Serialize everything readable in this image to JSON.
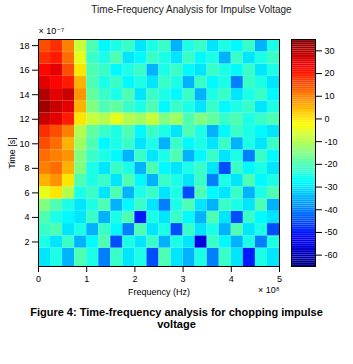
{
  "chart_data": {
    "type": "heatmap",
    "title": "Time-Frequency Analysis for Impulse Voltage",
    "x_label": "Frequency (Hz)",
    "y_label": "Time [s]",
    "x_exponent_label": "× 10⁸",
    "y_exponent_label": "× 10⁻⁷",
    "caption": "Figure 4: Time-frequency analysis for chopping impulse voltage",
    "xlim": [
      0,
      5
    ],
    "xticks": [
      0,
      1,
      2,
      3,
      4,
      5
    ],
    "ylim": [
      0,
      18.5
    ],
    "yticks": [
      2,
      4,
      6,
      8,
      10,
      12,
      14,
      16,
      18
    ],
    "color_range": [
      -65,
      35
    ],
    "color_ticks": [
      -60,
      -50,
      -40,
      -30,
      -20,
      -10,
      0,
      10,
      20,
      30
    ],
    "cells": {
      "x_edges": [
        0,
        0.25,
        0.5,
        0.75,
        1,
        1.25,
        1.5,
        1.75,
        2,
        2.25,
        2.5,
        2.75,
        3,
        3.25,
        3.5,
        3.75,
        4,
        4.25,
        4.5,
        4.75,
        5
      ],
      "y_edges": [
        0,
        1.5,
        2.5,
        3.5,
        4.5,
        5.5,
        6.5,
        7.5,
        8.5,
        9.5,
        10.5,
        11.5,
        12.5,
        13.5,
        14.5,
        15.5,
        16.5,
        17.5,
        18.5
      ],
      "values": [
        [
          -30,
          -25,
          -35,
          -20,
          -25,
          -40,
          -22,
          -30,
          -25,
          -45,
          -20,
          -30,
          -35,
          -25,
          -40,
          -22,
          -30,
          -50,
          -25,
          -30
        ],
        [
          -25,
          -30,
          -22,
          -35,
          -28,
          -20,
          -45,
          -25,
          -30,
          -22,
          -35,
          -25,
          -30,
          -55,
          -22,
          -28,
          -35,
          -25,
          -40,
          -25
        ],
        [
          -22,
          -20,
          -30,
          -25,
          -35,
          -22,
          -28,
          -40,
          -20,
          -30,
          -25,
          -45,
          -22,
          -30,
          -25,
          -35,
          -20,
          -30,
          -25,
          -45
        ],
        [
          -20,
          -25,
          -28,
          -30,
          -22,
          -35,
          -25,
          -20,
          -50,
          -25,
          -30,
          -22,
          -28,
          -35,
          -20,
          -30,
          -45,
          -22,
          -28,
          -30
        ],
        [
          -15,
          -20,
          -25,
          -30,
          -25,
          -20,
          -35,
          -28,
          -22,
          -30,
          -40,
          -25,
          -20,
          -30,
          -35,
          -22,
          -25,
          -30,
          -20,
          -35
        ],
        [
          -5,
          0,
          -10,
          -25,
          -22,
          -30,
          -20,
          -35,
          -25,
          -22,
          -30,
          -25,
          -45,
          -20,
          -28,
          -30,
          -22,
          -35,
          -25,
          -20
        ],
        [
          5,
          8,
          0,
          -20,
          -25,
          -22,
          -30,
          -20,
          -28,
          -35,
          -22,
          -25,
          -30,
          -22,
          -40,
          -25,
          -30,
          -20,
          -28,
          -25
        ],
        [
          10,
          12,
          5,
          -15,
          -25,
          -30,
          -22,
          -25,
          -35,
          -20,
          -28,
          -30,
          -25,
          -22,
          -30,
          -45,
          -22,
          -28,
          -25,
          -30
        ],
        [
          12,
          10,
          8,
          -15,
          -22,
          -25,
          -28,
          -35,
          -22,
          -30,
          -25,
          -20,
          -35,
          -28,
          -22,
          -30,
          -25,
          -40,
          -22,
          -28
        ],
        [
          15,
          12,
          5,
          -12,
          -20,
          -28,
          -25,
          -22,
          -30,
          -25,
          -35,
          -22,
          -28,
          -25,
          -30,
          -22,
          -35,
          -25,
          -30,
          -22
        ],
        [
          18,
          15,
          10,
          -10,
          -18,
          -22,
          -25,
          -20,
          -28,
          -22,
          -25,
          -30,
          -20,
          -25,
          -35,
          -28,
          -22,
          -25,
          -28,
          -30
        ],
        [
          28,
          25,
          20,
          0,
          -8,
          -10,
          -5,
          -10,
          -12,
          -8,
          -15,
          -12,
          -20,
          -15,
          -18,
          -22,
          -20,
          -25,
          -22,
          -20
        ],
        [
          32,
          28,
          25,
          5,
          -15,
          -20,
          -18,
          -22,
          -25,
          -20,
          -28,
          -22,
          -25,
          -30,
          -22,
          -28,
          -25,
          -22,
          -30,
          -25
        ],
        [
          30,
          25,
          28,
          8,
          -18,
          -22,
          -25,
          -20,
          -30,
          -22,
          -25,
          -28,
          -22,
          -35,
          -25,
          -22,
          -30,
          -25,
          -22,
          -28
        ],
        [
          25,
          22,
          20,
          5,
          -20,
          -25,
          -22,
          -28,
          -25,
          -30,
          -22,
          -25,
          -35,
          -22,
          -28,
          -25,
          -40,
          -22,
          -25,
          -30
        ],
        [
          22,
          25,
          15,
          0,
          -20,
          -22,
          -28,
          -25,
          -22,
          -35,
          -25,
          -22,
          -28,
          -30,
          -22,
          -25,
          -28,
          -22,
          -30,
          -25
        ],
        [
          18,
          20,
          12,
          -5,
          -22,
          -25,
          -20,
          -30,
          -28,
          -22,
          -25,
          -30,
          -22,
          -28,
          -25,
          -35,
          -22,
          -30,
          -25,
          -22
        ],
        [
          15,
          18,
          10,
          -8,
          -20,
          -28,
          -25,
          -22,
          -30,
          -25,
          -22,
          -35,
          -25,
          -22,
          -30,
          -25,
          -28,
          -22,
          -35,
          -25
        ]
      ]
    }
  }
}
